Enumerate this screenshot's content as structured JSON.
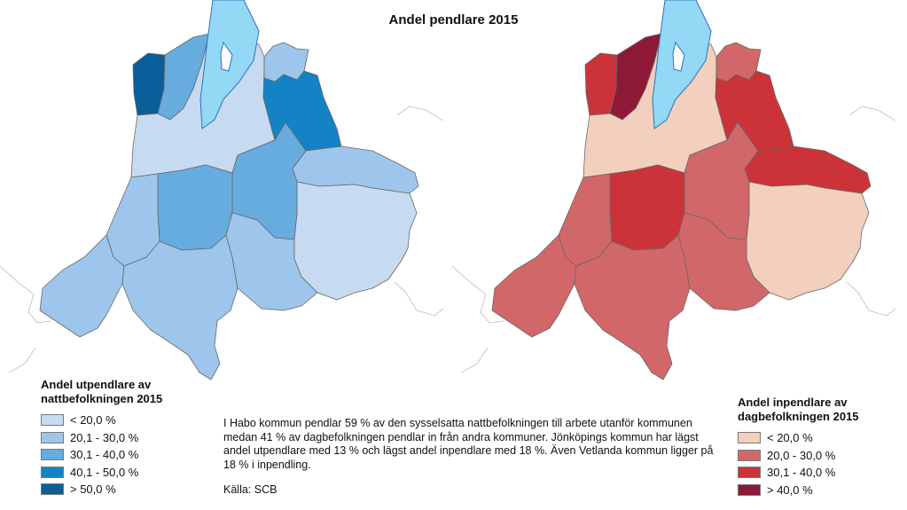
{
  "title": "Andel pendlare 2015",
  "left_legend": {
    "title_line1": "Andel utpendlare av",
    "title_line2": "nattbefolkningen 2015",
    "classes": [
      {
        "label": "< 20,0 %",
        "color": "#c6dbf2"
      },
      {
        "label": "20,1 - 30,0 %",
        "color": "#9ec6ec"
      },
      {
        "label": "30,1 - 40,0 %",
        "color": "#67acdf"
      },
      {
        "label": "40,1 - 50,0 %",
        "color": "#1483c6"
      },
      {
        "label": "> 50,0 %",
        "color": "#0a5e99"
      }
    ]
  },
  "right_legend": {
    "title_line1": "Andel inpendlare av",
    "title_line2": "dagbefolkningen 2015",
    "classes": [
      {
        "label": "< 20,0 %",
        "color": "#f3cfbd"
      },
      {
        "label": "20,0 - 30,0 %",
        "color": "#d26769"
      },
      {
        "label": "30,1 - 40,0 %",
        "color": "#cc3339"
      },
      {
        "label": "> 40,0 %",
        "color": "#8e1838"
      }
    ]
  },
  "lake_color": "#93d8f4",
  "info_text": "I Habo kommun pendlar 59 % av den sysselsatta nattbefolkningen till arbete utanför kommunen medan 41 % av dagbefolkningen pendlar in från andra kommuner. Jönköpings kommun har lägst andel utpendlare med 13 % och lägst andel inpendlare med 18 %. Även Vetlanda kommun ligger på 18 % i inpendling.",
  "source": "Källa: SCB"
}
